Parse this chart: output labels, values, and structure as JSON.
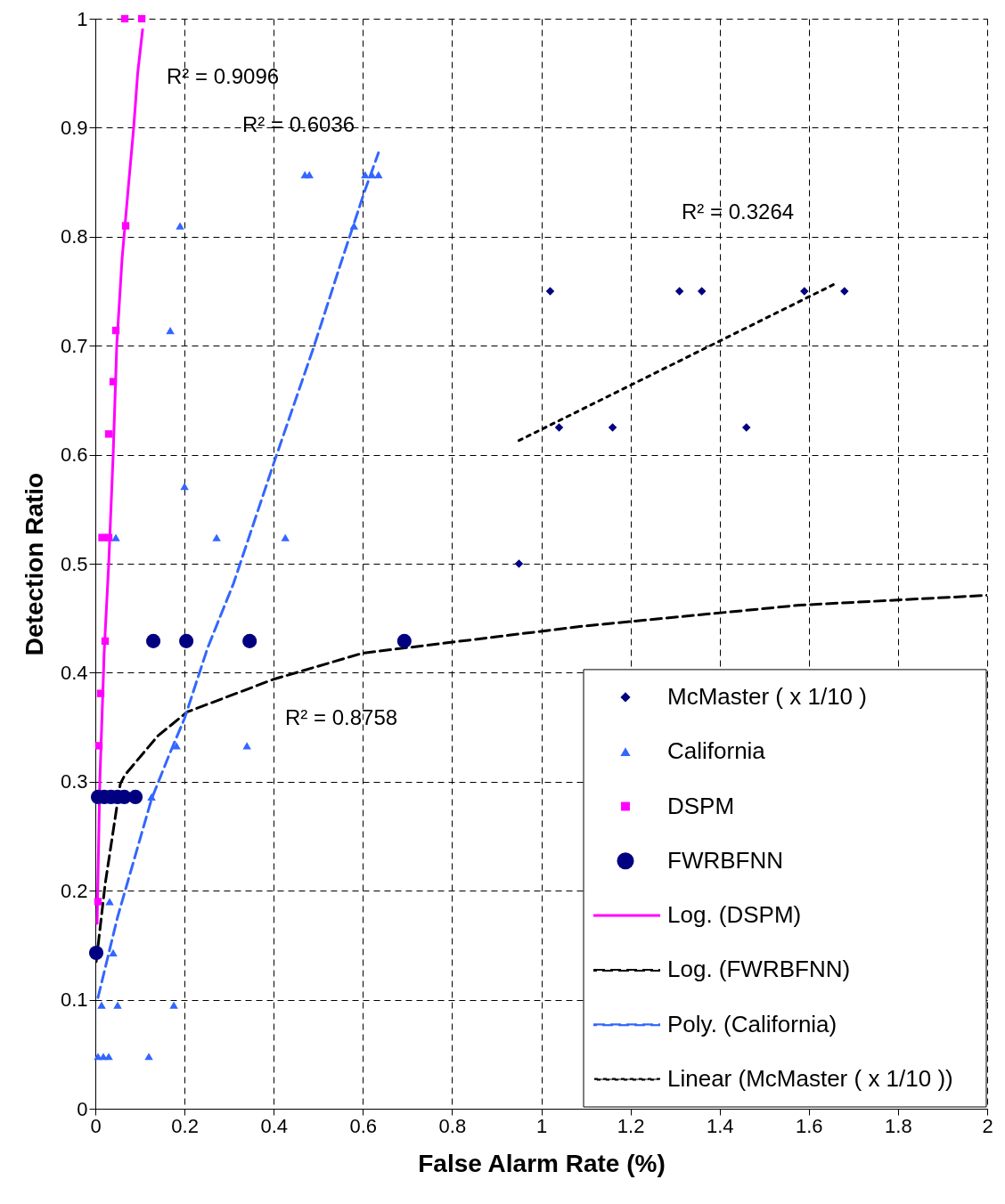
{
  "chart_data": {
    "type": "scatter",
    "xlabel": "False Alarm Rate (%)",
    "ylabel": "Detection Ratio",
    "xlim": [
      0,
      2
    ],
    "ylim": [
      0,
      1
    ],
    "xticks": [
      0,
      0.2,
      0.4,
      0.6,
      0.8,
      1,
      1.2,
      1.4,
      1.6,
      1.8,
      2
    ],
    "yticks": [
      0,
      0.1,
      0.2,
      0.3,
      0.4,
      0.5,
      0.6,
      0.7,
      0.8,
      0.9,
      1
    ],
    "grid": true,
    "legend": "bottom right",
    "series": [
      {
        "name": "McMaster ( x 1/10 )",
        "marker": "diamond",
        "color": "#000080",
        "x": [
          0.95,
          1.02,
          1.04,
          1.16,
          1.31,
          1.36,
          1.46,
          1.59,
          1.68
        ],
        "values": [
          0.5,
          0.75,
          0.625,
          0.625,
          0.75,
          0.75,
          0.625,
          0.75,
          0.75
        ]
      },
      {
        "name": "California",
        "marker": "triangle",
        "color": "#3366ff",
        "x": [
          0.47,
          0.48,
          0.605,
          0.62,
          0.635,
          0.19,
          0.58,
          0.168,
          0.2,
          0.046,
          0.272,
          0.426,
          0.182,
          0.34,
          0.126,
          0.032,
          0.04,
          0.014,
          0.05,
          0.176,
          0.006,
          0.018,
          0.03,
          0.12
        ],
        "values": [
          0.857,
          0.857,
          0.857,
          0.857,
          0.857,
          0.81,
          0.81,
          0.714,
          0.571,
          0.524,
          0.524,
          0.524,
          0.333,
          0.333,
          0.286,
          0.19,
          0.143,
          0.095,
          0.095,
          0.095,
          0.048,
          0.048,
          0.048,
          0.048
        ]
      },
      {
        "name": "DSPM",
        "marker": "square",
        "color": "#ff00ff",
        "x": [
          0.066,
          0.104,
          0.068,
          0.046,
          0.04,
          0.03,
          0.015,
          0.03,
          0.022,
          0.012,
          0.008,
          0.006
        ],
        "values": [
          1,
          1,
          0.81,
          0.714,
          0.667,
          0.619,
          0.524,
          0.524,
          0.429,
          0.381,
          0.333,
          0.19
        ]
      },
      {
        "name": "FWRBFNN",
        "marker": "circle",
        "color": "#000080",
        "x": [
          0.002,
          0.006,
          0.02,
          0.035,
          0.05,
          0.065,
          0.09,
          0.13,
          0.204,
          0.346,
          0.693
        ],
        "values": [
          0.143,
          0.286,
          0.286,
          0.286,
          0.286,
          0.286,
          0.286,
          0.429,
          0.429,
          0.429,
          0.429
        ]
      },
      {
        "name": "Log. (DSPM)",
        "type": "line",
        "line_style": "solid",
        "color": "#ff00ff",
        "x": [
          0.004,
          0.01,
          0.02,
          0.03,
          0.04,
          0.048,
          0.06,
          0.075,
          0.086,
          0.095,
          0.106
        ],
        "values": [
          0.17,
          0.3,
          0.42,
          0.5,
          0.6,
          0.7,
          0.78,
          0.85,
          0.9,
          0.95,
          0.99
        ]
      },
      {
        "name": "Log. (FWRBFNN)",
        "type": "line",
        "line_style": "dashed",
        "color": "#000000",
        "x": [
          0.002,
          0.022,
          0.056,
          0.066,
          0.14,
          0.206,
          0.4,
          0.6,
          1.1,
          1.58,
          2
        ],
        "values": [
          0.135,
          0.206,
          0.298,
          0.306,
          0.342,
          0.364,
          0.394,
          0.418,
          0.443,
          0.462,
          0.471
        ]
      },
      {
        "name": "Poly. (California)",
        "type": "line",
        "line_style": "dashed",
        "color": "#3366ff",
        "x": [
          0.006,
          0.05,
          0.126,
          0.166,
          0.2,
          0.252,
          0.31,
          0.4,
          0.49,
          0.546,
          0.605,
          0.635
        ],
        "values": [
          0.102,
          0.176,
          0.284,
          0.325,
          0.358,
          0.423,
          0.482,
          0.592,
          0.699,
          0.77,
          0.843,
          0.877
        ]
      },
      {
        "name": "Linear (McMaster ( x 1/10 ))",
        "type": "line",
        "line_style": "dotted",
        "color": "#000000",
        "x": [
          0.95,
          1.655
        ],
        "values": [
          0.613,
          0.756
        ]
      }
    ],
    "annotations": [
      "R² = 0.9096",
      "R² = 0.6036",
      "R² = 0.3264",
      "R² = 0.8758"
    ]
  }
}
